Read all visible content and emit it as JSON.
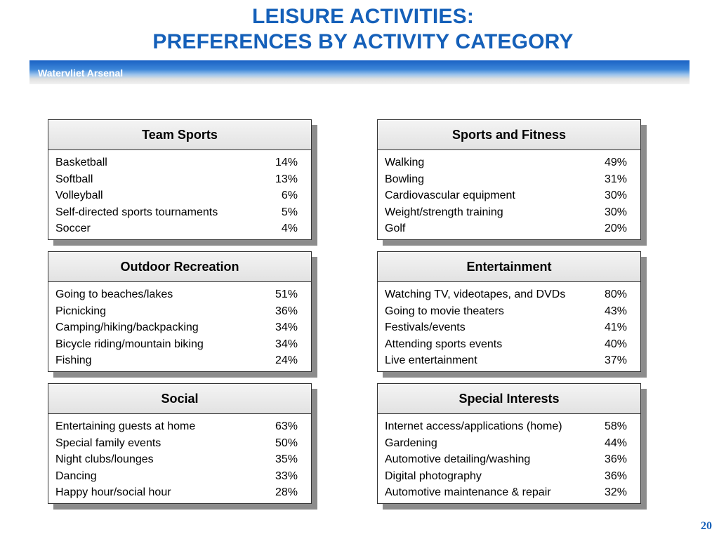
{
  "title_line1": "LEISURE ACTIVITIES:",
  "title_line2": "PREFERENCES BY ACTIVITY CATEGORY",
  "banner_text": "Watervliet Arsenal",
  "page_number": "20",
  "colors": {
    "title": "#1560b9",
    "banner_blue": "#1a62c4",
    "shadow": "#8c8c8c"
  },
  "categories": [
    {
      "title": "Team Sports",
      "items": [
        {
          "label": "Basketball",
          "value": "14%"
        },
        {
          "label": "Softball",
          "value": "13%"
        },
        {
          "label": "Volleyball",
          "value": "6%"
        },
        {
          "label": "Self-directed sports tournaments",
          "value": "5%"
        },
        {
          "label": "Soccer",
          "value": "4%"
        }
      ]
    },
    {
      "title": "Sports and Fitness",
      "items": [
        {
          "label": "Walking",
          "value": "49%"
        },
        {
          "label": "Bowling",
          "value": "31%"
        },
        {
          "label": "Cardiovascular equipment",
          "value": "30%"
        },
        {
          "label": "Weight/strength training",
          "value": "30%"
        },
        {
          "label": "Golf",
          "value": "20%"
        }
      ]
    },
    {
      "title": "Outdoor Recreation",
      "items": [
        {
          "label": "Going to beaches/lakes",
          "value": "51%"
        },
        {
          "label": "Picnicking",
          "value": "36%"
        },
        {
          "label": "Camping/hiking/backpacking",
          "value": "34%"
        },
        {
          "label": "Bicycle riding/mountain biking",
          "value": "34%"
        },
        {
          "label": "Fishing",
          "value": "24%"
        }
      ]
    },
    {
      "title": "Entertainment",
      "items": [
        {
          "label": "Watching TV, videotapes, and DVDs",
          "value": "80%"
        },
        {
          "label": "Going to movie theaters",
          "value": "43%"
        },
        {
          "label": "Festivals/events",
          "value": "41%"
        },
        {
          "label": "Attending sports events",
          "value": "40%"
        },
        {
          "label": "Live entertainment",
          "value": "37%"
        }
      ]
    },
    {
      "title": "Social",
      "items": [
        {
          "label": "Entertaining guests at home",
          "value": "63%"
        },
        {
          "label": "Special family events",
          "value": "50%"
        },
        {
          "label": "Night clubs/lounges",
          "value": "35%"
        },
        {
          "label": "Dancing",
          "value": "33%"
        },
        {
          "label": "Happy hour/social hour",
          "value": "28%"
        }
      ]
    },
    {
      "title": "Special Interests",
      "items": [
        {
          "label": "Internet access/applications (home)",
          "value": "58%"
        },
        {
          "label": "Gardening",
          "value": "44%"
        },
        {
          "label": "Automotive detailing/washing",
          "value": "36%"
        },
        {
          "label": "Digital photography",
          "value": "36%"
        },
        {
          "label": "Automotive maintenance & repair",
          "value": "32%"
        }
      ]
    }
  ]
}
